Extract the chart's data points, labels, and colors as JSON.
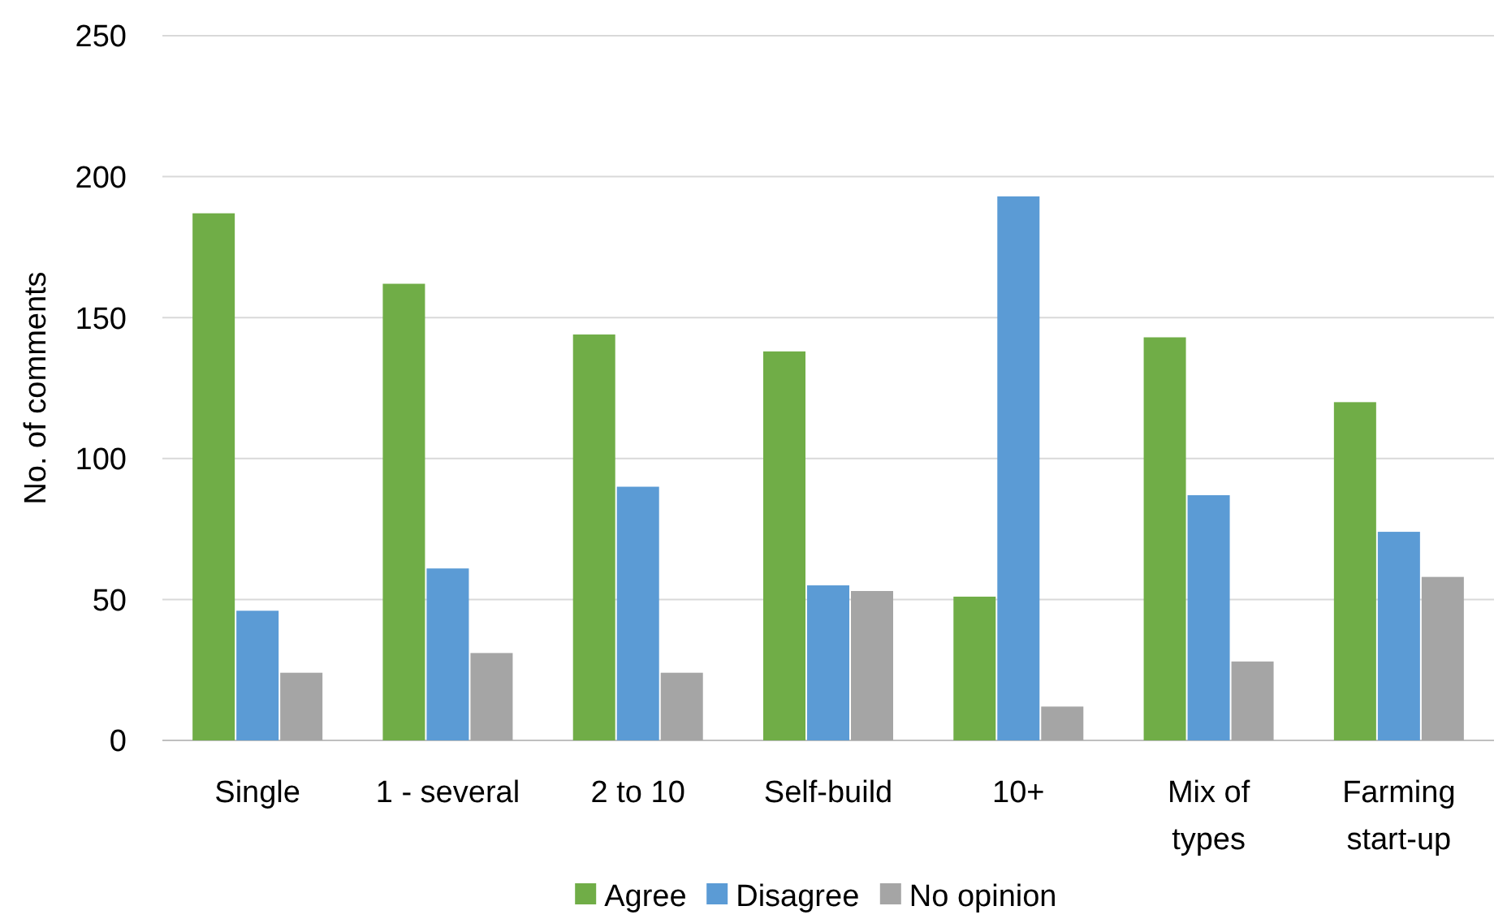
{
  "chart_data": {
    "type": "bar",
    "ylabel": "No. of comments",
    "categories": [
      "Single",
      "1 - several",
      "2 to 10",
      "Self-build",
      "10+",
      "Mix of types",
      "Farming start-up"
    ],
    "series": [
      {
        "name": "Agree",
        "color": "#70ad47",
        "values": [
          187,
          162,
          144,
          138,
          51,
          143,
          120
        ]
      },
      {
        "name": "Disagree",
        "color": "#5b9bd5",
        "values": [
          46,
          61,
          90,
          55,
          193,
          87,
          74
        ]
      },
      {
        "name": "No opinion",
        "color": "#a5a5a5",
        "values": [
          24,
          31,
          24,
          53,
          12,
          28,
          58
        ]
      }
    ],
    "ylim": [
      0,
      250
    ],
    "yticks": [
      0,
      50,
      100,
      150,
      200,
      250
    ],
    "grid": "y",
    "legend": "bottom"
  }
}
